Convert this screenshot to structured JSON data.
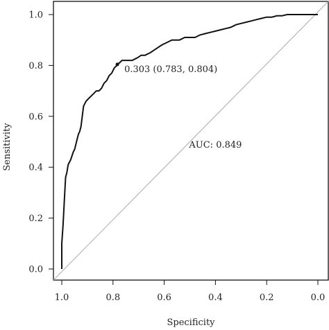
{
  "chart_data": {
    "type": "line",
    "xlabel": "Specificity",
    "ylabel": "Sensitivity",
    "xlim": [
      1.0,
      0.0
    ],
    "ylim": [
      0.0,
      1.0
    ],
    "x_reversed": true,
    "xticks": [
      "1.0",
      "0.8",
      "0.6",
      "0.4",
      "0.2",
      "0.0"
    ],
    "yticks": [
      "0.0",
      "0.2",
      "0.4",
      "0.6",
      "0.8",
      "1.0"
    ],
    "grid": false,
    "colors": {
      "curve": "#111111",
      "reference": "#b0b0b0"
    },
    "series": [
      {
        "x": [
          1.0,
          1.0,
          0.995,
          0.99,
          0.985,
          0.98,
          0.975,
          0.97,
          0.965,
          0.955,
          0.95,
          0.945,
          0.935,
          0.93,
          0.925,
          0.92,
          0.915,
          0.91,
          0.905,
          0.895,
          0.885,
          0.875,
          0.865,
          0.855,
          0.845,
          0.835,
          0.825,
          0.815,
          0.805,
          0.795,
          0.785,
          0.783,
          0.775,
          0.765,
          0.755,
          0.745,
          0.735,
          0.725,
          0.715,
          0.705,
          0.69,
          0.675,
          0.655,
          0.64,
          0.625,
          0.61,
          0.59,
          0.57,
          0.555,
          0.54,
          0.52,
          0.5,
          0.48,
          0.46,
          0.44,
          0.42,
          0.4,
          0.38,
          0.36,
          0.34,
          0.32,
          0.3,
          0.28,
          0.26,
          0.24,
          0.22,
          0.2,
          0.18,
          0.16,
          0.14,
          0.12,
          0.1,
          0.08,
          0.06,
          0.04,
          0.02,
          0.0
        ],
        "y": [
          0.0,
          0.1,
          0.17,
          0.27,
          0.36,
          0.38,
          0.41,
          0.42,
          0.43,
          0.46,
          0.47,
          0.49,
          0.53,
          0.54,
          0.56,
          0.6,
          0.64,
          0.65,
          0.66,
          0.67,
          0.68,
          0.69,
          0.7,
          0.7,
          0.71,
          0.73,
          0.74,
          0.76,
          0.77,
          0.79,
          0.8,
          0.804,
          0.81,
          0.82,
          0.82,
          0.82,
          0.82,
          0.82,
          0.825,
          0.83,
          0.84,
          0.84,
          0.85,
          0.86,
          0.87,
          0.88,
          0.89,
          0.9,
          0.9,
          0.9,
          0.91,
          0.91,
          0.91,
          0.92,
          0.925,
          0.93,
          0.935,
          0.94,
          0.945,
          0.95,
          0.96,
          0.965,
          0.97,
          0.975,
          0.98,
          0.985,
          0.99,
          0.99,
          0.995,
          0.995,
          1.0,
          1.0,
          1.0,
          1.0,
          1.0,
          1.0,
          1.0
        ]
      }
    ],
    "reference_line": {
      "x": [
        1.0,
        0.0
      ],
      "y": [
        0.0,
        1.0
      ]
    },
    "annotations": [
      {
        "text": "0.303 (0.783, 0.804)",
        "x": 0.783,
        "y": 0.804
      },
      {
        "text": "AUC: 0.849",
        "x": 0.4,
        "y": 0.48
      }
    ]
  }
}
